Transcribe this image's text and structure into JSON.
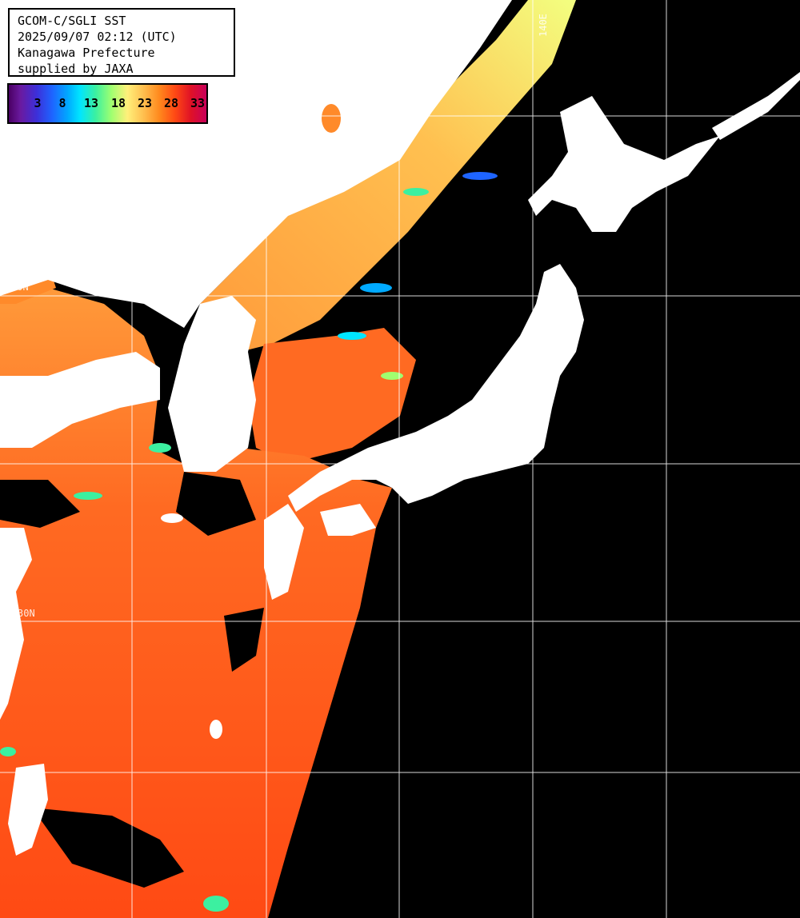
{
  "map": {
    "title": "GCOM-C/SGLI SST",
    "datetime": "2025/09/07 02:12 (UTC)",
    "region": "Kanagawa Prefecture",
    "credit": "supplied by JAXA",
    "colorbar": {
      "ticks": [
        "3",
        "8",
        "13",
        "18",
        "23",
        "28",
        "33"
      ],
      "colors": {
        "low": "#4b0064",
        "cold": "#1e64ff",
        "cool": "#00e5ff",
        "mid": "#a0ff70",
        "warm": "#fff07a",
        "hot": "#ff4a14",
        "high": "#c8005a"
      }
    },
    "grid_labels": {
      "lat_40": "40N",
      "lat_30": "30N",
      "lon_140": "140E"
    },
    "colors": {
      "land": "#ffffff",
      "cloud_mask": "#000000",
      "gridline": "#ffffff"
    }
  }
}
